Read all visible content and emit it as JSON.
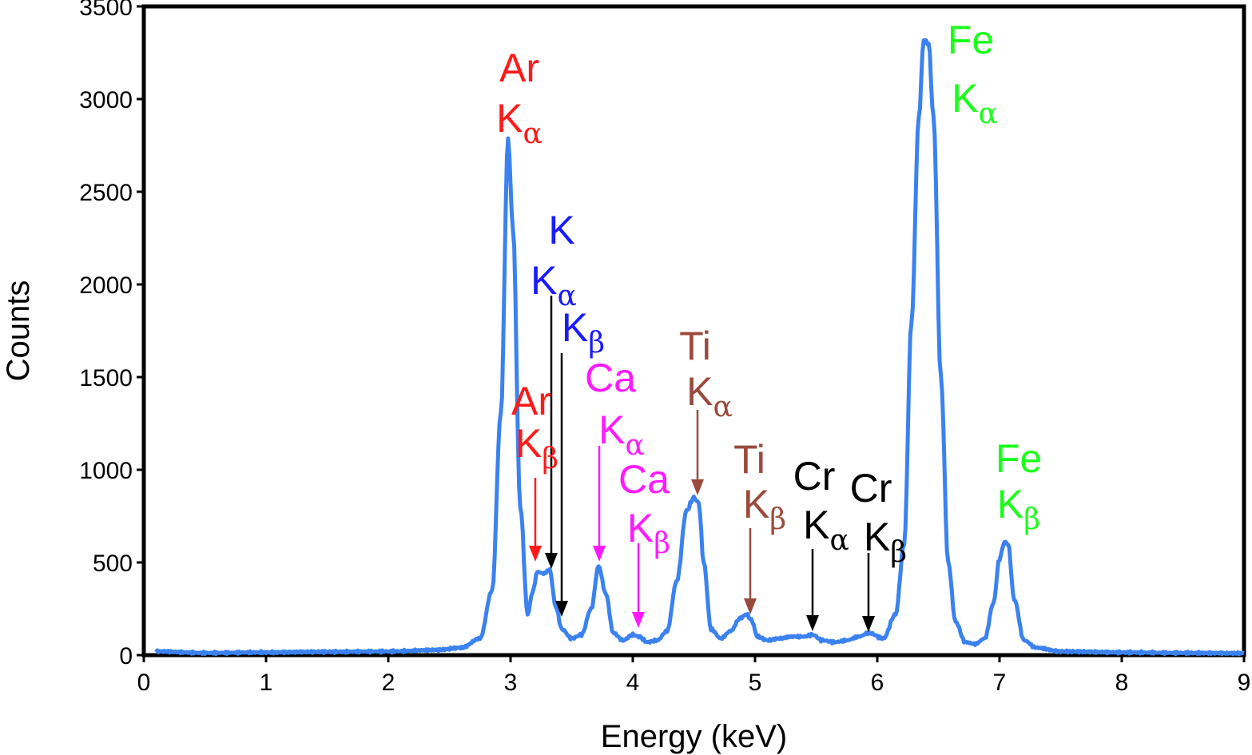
{
  "chart_data": {
    "type": "line",
    "title": "",
    "xlabel": "Energy (keV)",
    "ylabel": "Counts",
    "xlim": [
      0,
      9
    ],
    "ylim": [
      0,
      3500
    ],
    "xticks": [
      0,
      1,
      2,
      3,
      4,
      5,
      6,
      7,
      8,
      9
    ],
    "yticks": [
      0,
      500,
      1000,
      1500,
      2000,
      2500,
      3000,
      3500
    ],
    "grid": false,
    "legend": "none",
    "line_color": "#3b82f0",
    "series": [
      {
        "x": [
          0.1,
          0.5,
          1.0,
          1.5,
          2.0,
          2.4,
          2.6,
          2.75,
          2.85,
          2.92,
          2.98,
          3.02,
          3.08,
          3.14,
          3.18,
          3.22,
          3.27,
          3.32,
          3.37,
          3.42,
          3.5,
          3.58,
          3.66,
          3.72,
          3.78,
          3.84,
          3.92,
          4.0,
          4.05,
          4.12,
          4.2,
          4.28,
          4.36,
          4.44,
          4.5,
          4.54,
          4.58,
          4.64,
          4.72,
          4.8,
          4.88,
          4.93,
          4.97,
          5.02,
          5.1,
          5.2,
          5.3,
          5.4,
          5.47,
          5.55,
          5.65,
          5.75,
          5.85,
          5.93,
          6.05,
          6.15,
          6.22,
          6.28,
          6.34,
          6.38,
          6.42,
          6.46,
          6.52,
          6.58,
          6.64,
          6.72,
          6.8,
          6.88,
          6.95,
          7.0,
          7.04,
          7.07,
          7.12,
          7.2,
          7.3,
          7.5,
          8.0,
          8.5,
          9.0
        ],
        "y": [
          20,
          12,
          15,
          18,
          20,
          28,
          40,
          90,
          350,
          1300,
          2780,
          2300,
          800,
          220,
          340,
          450,
          440,
          460,
          260,
          140,
          90,
          110,
          250,
          480,
          330,
          120,
          80,
          110,
          100,
          70,
          80,
          130,
          400,
          780,
          850,
          820,
          500,
          140,
          90,
          130,
          200,
          220,
          190,
          100,
          80,
          90,
          100,
          100,
          110,
          80,
          70,
          80,
          100,
          120,
          90,
          220,
          600,
          1800,
          2900,
          3320,
          3300,
          2900,
          1500,
          500,
          180,
          70,
          60,
          90,
          280,
          520,
          610,
          600,
          300,
          80,
          40,
          20,
          15,
          12,
          10
        ]
      }
    ],
    "annotations": [
      {
        "element": "Ar",
        "line": "α",
        "color": "#ff1a1a"
      },
      {
        "element": "K",
        "line": "α",
        "color": "#1a1aff"
      },
      {
        "element": "K",
        "line": "β",
        "color": "#1a1aff"
      },
      {
        "element": "Ar",
        "line": "β",
        "color": "#ff1a1a"
      },
      {
        "element": "Ca",
        "line": "α",
        "color": "#ff1aff"
      },
      {
        "element": "Ca",
        "line": "β",
        "color": "#ff1aff"
      },
      {
        "element": "Ti",
        "line": "α",
        "color": "#9a4a3c"
      },
      {
        "element": "Ti",
        "line": "β",
        "color": "#9a4a3c"
      },
      {
        "element": "Cr",
        "line": "α",
        "color": "#000000"
      },
      {
        "element": "Cr",
        "line": "β",
        "color": "#000000"
      },
      {
        "element": "Fe",
        "line": "α",
        "color": "#1aff1a"
      },
      {
        "element": "Fe",
        "line": "β",
        "color": "#1aff1a"
      }
    ],
    "annotation_label_K": "K"
  }
}
